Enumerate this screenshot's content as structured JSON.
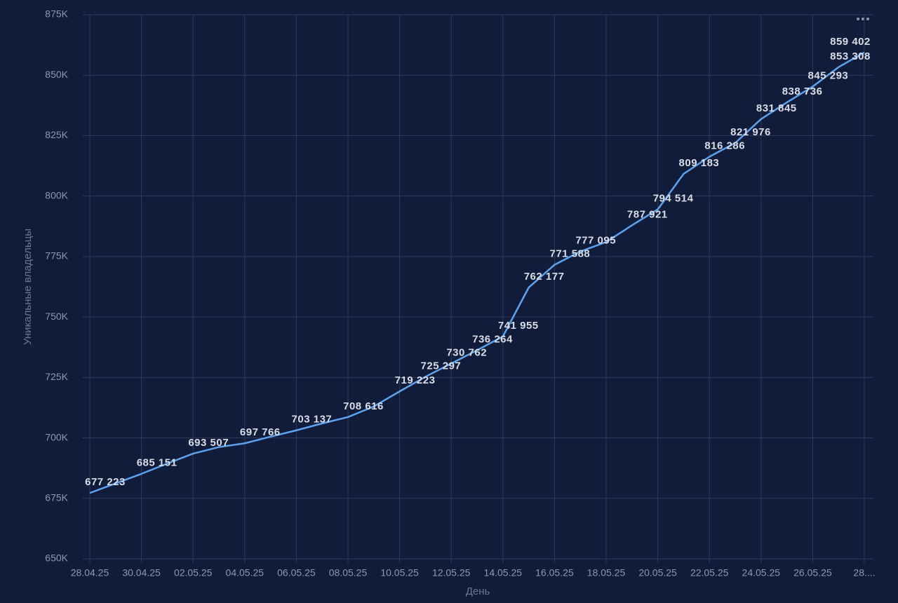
{
  "chart_data": {
    "type": "line",
    "x_label": "День",
    "y_label": "Уникальные владельцы",
    "categories": [
      "28.04.25",
      null,
      "30.04.25",
      null,
      "02.05.25",
      null,
      "04.05.25",
      null,
      "06.05.25",
      null,
      "08.05.25",
      null,
      "10.05.25",
      null,
      "12.05.25",
      null,
      "14.05.25",
      null,
      "16.05.25",
      null,
      "18.05.25",
      null,
      "20.05.25",
      null,
      "22.05.25",
      null,
      "24.05.25",
      null,
      "26.05.25",
      null,
      "28...."
    ],
    "values": [
      677223,
      681200,
      685151,
      689400,
      693507,
      696200,
      697766,
      700500,
      703137,
      706000,
      708616,
      713000,
      719223,
      725297,
      730762,
      736264,
      741955,
      762177,
      771588,
      777095,
      781000,
      787921,
      794514,
      809183,
      816286,
      821976,
      831845,
      838736,
      845293,
      853308,
      859402
    ],
    "value_labels": [
      "677 223",
      null,
      "685 151",
      null,
      "693 507",
      null,
      "697 766",
      null,
      "703 137",
      null,
      "708 616",
      null,
      "719 223",
      "725 297",
      "730 762",
      "736 264",
      "741 955",
      "762 177",
      "771 588",
      "777 095",
      null,
      "787 921",
      "794 514",
      "809 183",
      "816 286",
      "821 976",
      "831 845",
      "838 736",
      "845 293",
      "853 308",
      "859 402"
    ],
    "color": "#5ba3ef",
    "ylim": [
      650000,
      875000
    ],
    "yticks": [
      {
        "value": 650000,
        "label": "650K"
      },
      {
        "value": 675000,
        "label": "675K"
      },
      {
        "value": 700000,
        "label": "700K"
      },
      {
        "value": 725000,
        "label": "725K"
      },
      {
        "value": 750000,
        "label": "750K"
      },
      {
        "value": 775000,
        "label": "775K"
      },
      {
        "value": 800000,
        "label": "800K"
      },
      {
        "value": 825000,
        "label": "825K"
      },
      {
        "value": 850000,
        "label": "850K"
      },
      {
        "value": 875000,
        "label": "875K"
      }
    ],
    "grid": true
  }
}
